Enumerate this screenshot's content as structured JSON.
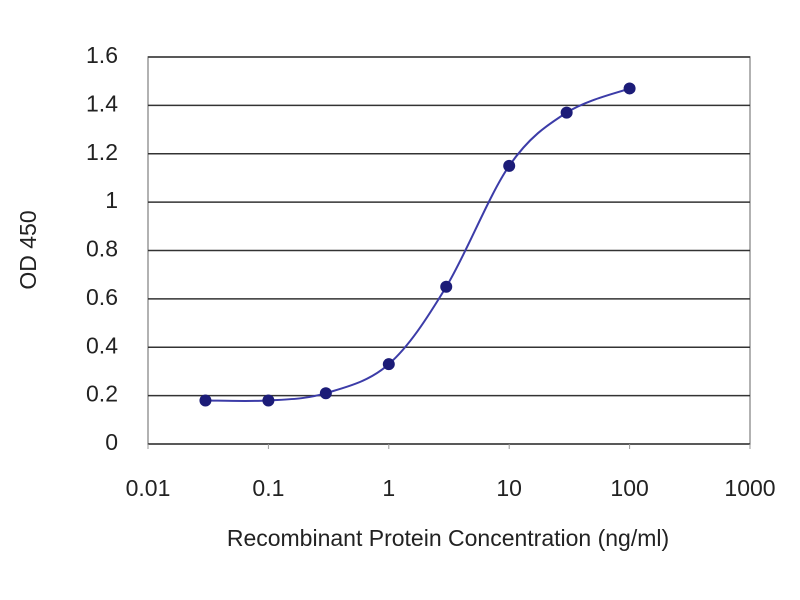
{
  "chart_data": {
    "type": "scatter",
    "x": [
      0.03,
      0.1,
      0.3,
      1,
      3,
      10,
      30,
      100
    ],
    "values": [
      0.18,
      0.18,
      0.21,
      0.33,
      0.65,
      1.15,
      1.37,
      1.47
    ],
    "xlabel": "Recombinant Protein Concentration (ng/ml)",
    "ylabel": "OD 450",
    "xlim": [
      0.01,
      1000
    ],
    "xticks": [
      0.01,
      0.1,
      1,
      10,
      100,
      1000
    ],
    "xscale": "log",
    "ylim": [
      0,
      1.6
    ],
    "yticks": [
      0,
      0.2,
      0.4,
      0.6,
      0.8,
      1,
      1.2,
      1.4,
      1.6
    ],
    "grid": true,
    "color": "#1c1c78",
    "line_color": "#3c3ca8"
  }
}
